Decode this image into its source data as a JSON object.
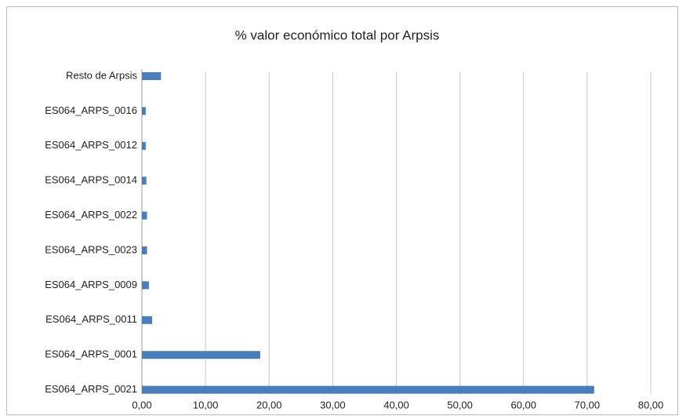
{
  "chart_data": {
    "type": "bar",
    "orientation": "horizontal",
    "title": "% valor económico total por Arpsis",
    "categories": [
      "Resto de Arpsis",
      "ES064_ARPS_0016",
      "ES064_ARPS_0012",
      "ES064_ARPS_0014",
      "ES064_ARPS_0022",
      "ES064_ARPS_0023",
      "ES064_ARPS_0009",
      "ES064_ARPS_0011",
      "ES064_ARPS_0001",
      "ES064_ARPS_0021"
    ],
    "values": [
      3.0,
      0.6,
      0.6,
      0.7,
      0.8,
      0.8,
      1.1,
      1.6,
      18.6,
      71.1
    ],
    "color": "#4a7ebb",
    "xlim": [
      0,
      80
    ],
    "xticks": [
      {
        "value": 0,
        "label": "0,00"
      },
      {
        "value": 10,
        "label": "10,00"
      },
      {
        "value": 20,
        "label": "20,00"
      },
      {
        "value": 30,
        "label": "30,00"
      },
      {
        "value": 40,
        "label": "40,00"
      },
      {
        "value": 50,
        "label": "50,00"
      },
      {
        "value": 60,
        "label": "60,00"
      },
      {
        "value": 70,
        "label": "70,00"
      },
      {
        "value": 80,
        "label": "80,00"
      }
    ],
    "grid": true
  }
}
